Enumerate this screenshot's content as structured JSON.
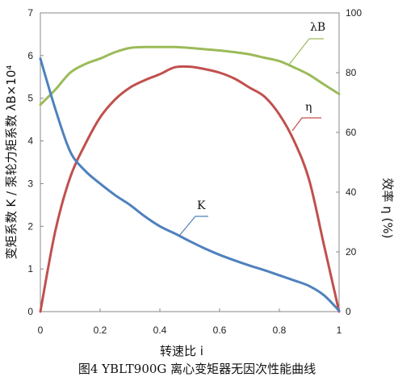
{
  "chart_data": {
    "type": "line",
    "caption": "图4 YBLT900G 离心变矩器无因次性能曲线",
    "xlabel": "转速比 i",
    "ylabel_left": "变矩系数 K / 泵轮力矩系数 λB×10⁴",
    "ylabel_right": "效率 η (%)",
    "xlim": [
      0,
      1
    ],
    "ylim_left": [
      0,
      7
    ],
    "ylim_right": [
      0,
      100
    ],
    "x_ticks": [
      "0",
      "0.2",
      "0.4",
      "0.6",
      "0.8",
      "1"
    ],
    "y_ticks_left": [
      "0",
      "1",
      "2",
      "3",
      "4",
      "5",
      "6",
      "7"
    ],
    "y_ticks_right": [
      "0",
      "20",
      "40",
      "60",
      "80",
      "100"
    ],
    "series": [
      {
        "name": "λB",
        "axis": "left",
        "color": "#9bbb59",
        "x": [
          0,
          0.05,
          0.1,
          0.15,
          0.2,
          0.25,
          0.3,
          0.35,
          0.4,
          0.45,
          0.5,
          0.55,
          0.6,
          0.65,
          0.7,
          0.75,
          0.8,
          0.85,
          0.9,
          0.95,
          1.0
        ],
        "y": [
          4.85,
          5.2,
          5.6,
          5.8,
          5.93,
          6.08,
          6.18,
          6.2,
          6.2,
          6.2,
          6.18,
          6.15,
          6.12,
          6.08,
          6.03,
          5.95,
          5.87,
          5.72,
          5.55,
          5.32,
          5.1
        ]
      },
      {
        "name": "η",
        "axis": "right",
        "color": "#c0504d",
        "x": [
          0,
          0.05,
          0.1,
          0.15,
          0.2,
          0.25,
          0.3,
          0.35,
          0.4,
          0.45,
          0.5,
          0.55,
          0.6,
          0.65,
          0.7,
          0.75,
          0.8,
          0.85,
          0.9,
          0.95,
          1.0
        ],
        "y": [
          0,
          27,
          45,
          56,
          65,
          71,
          75,
          77.5,
          79.5,
          81.8,
          82,
          81.2,
          80,
          78,
          75,
          72,
          66,
          57,
          44,
          22,
          0
        ]
      },
      {
        "name": "K",
        "axis": "left",
        "color": "#4f81bd",
        "x": [
          0,
          0.05,
          0.1,
          0.15,
          0.2,
          0.25,
          0.3,
          0.35,
          0.4,
          0.45,
          0.5,
          0.55,
          0.6,
          0.65,
          0.7,
          0.75,
          0.8,
          0.85,
          0.9,
          0.95,
          1.0
        ],
        "y": [
          5.93,
          4.75,
          3.75,
          3.3,
          3.0,
          2.73,
          2.5,
          2.23,
          2.0,
          1.83,
          1.65,
          1.48,
          1.33,
          1.2,
          1.08,
          0.97,
          0.85,
          0.73,
          0.6,
          0.38,
          0.02
        ]
      }
    ],
    "annotations": [
      {
        "label": "λB",
        "series": "λB"
      },
      {
        "label": "η",
        "series": "η"
      },
      {
        "label": "K",
        "series": "K"
      }
    ],
    "grid": false,
    "legend": "none"
  }
}
